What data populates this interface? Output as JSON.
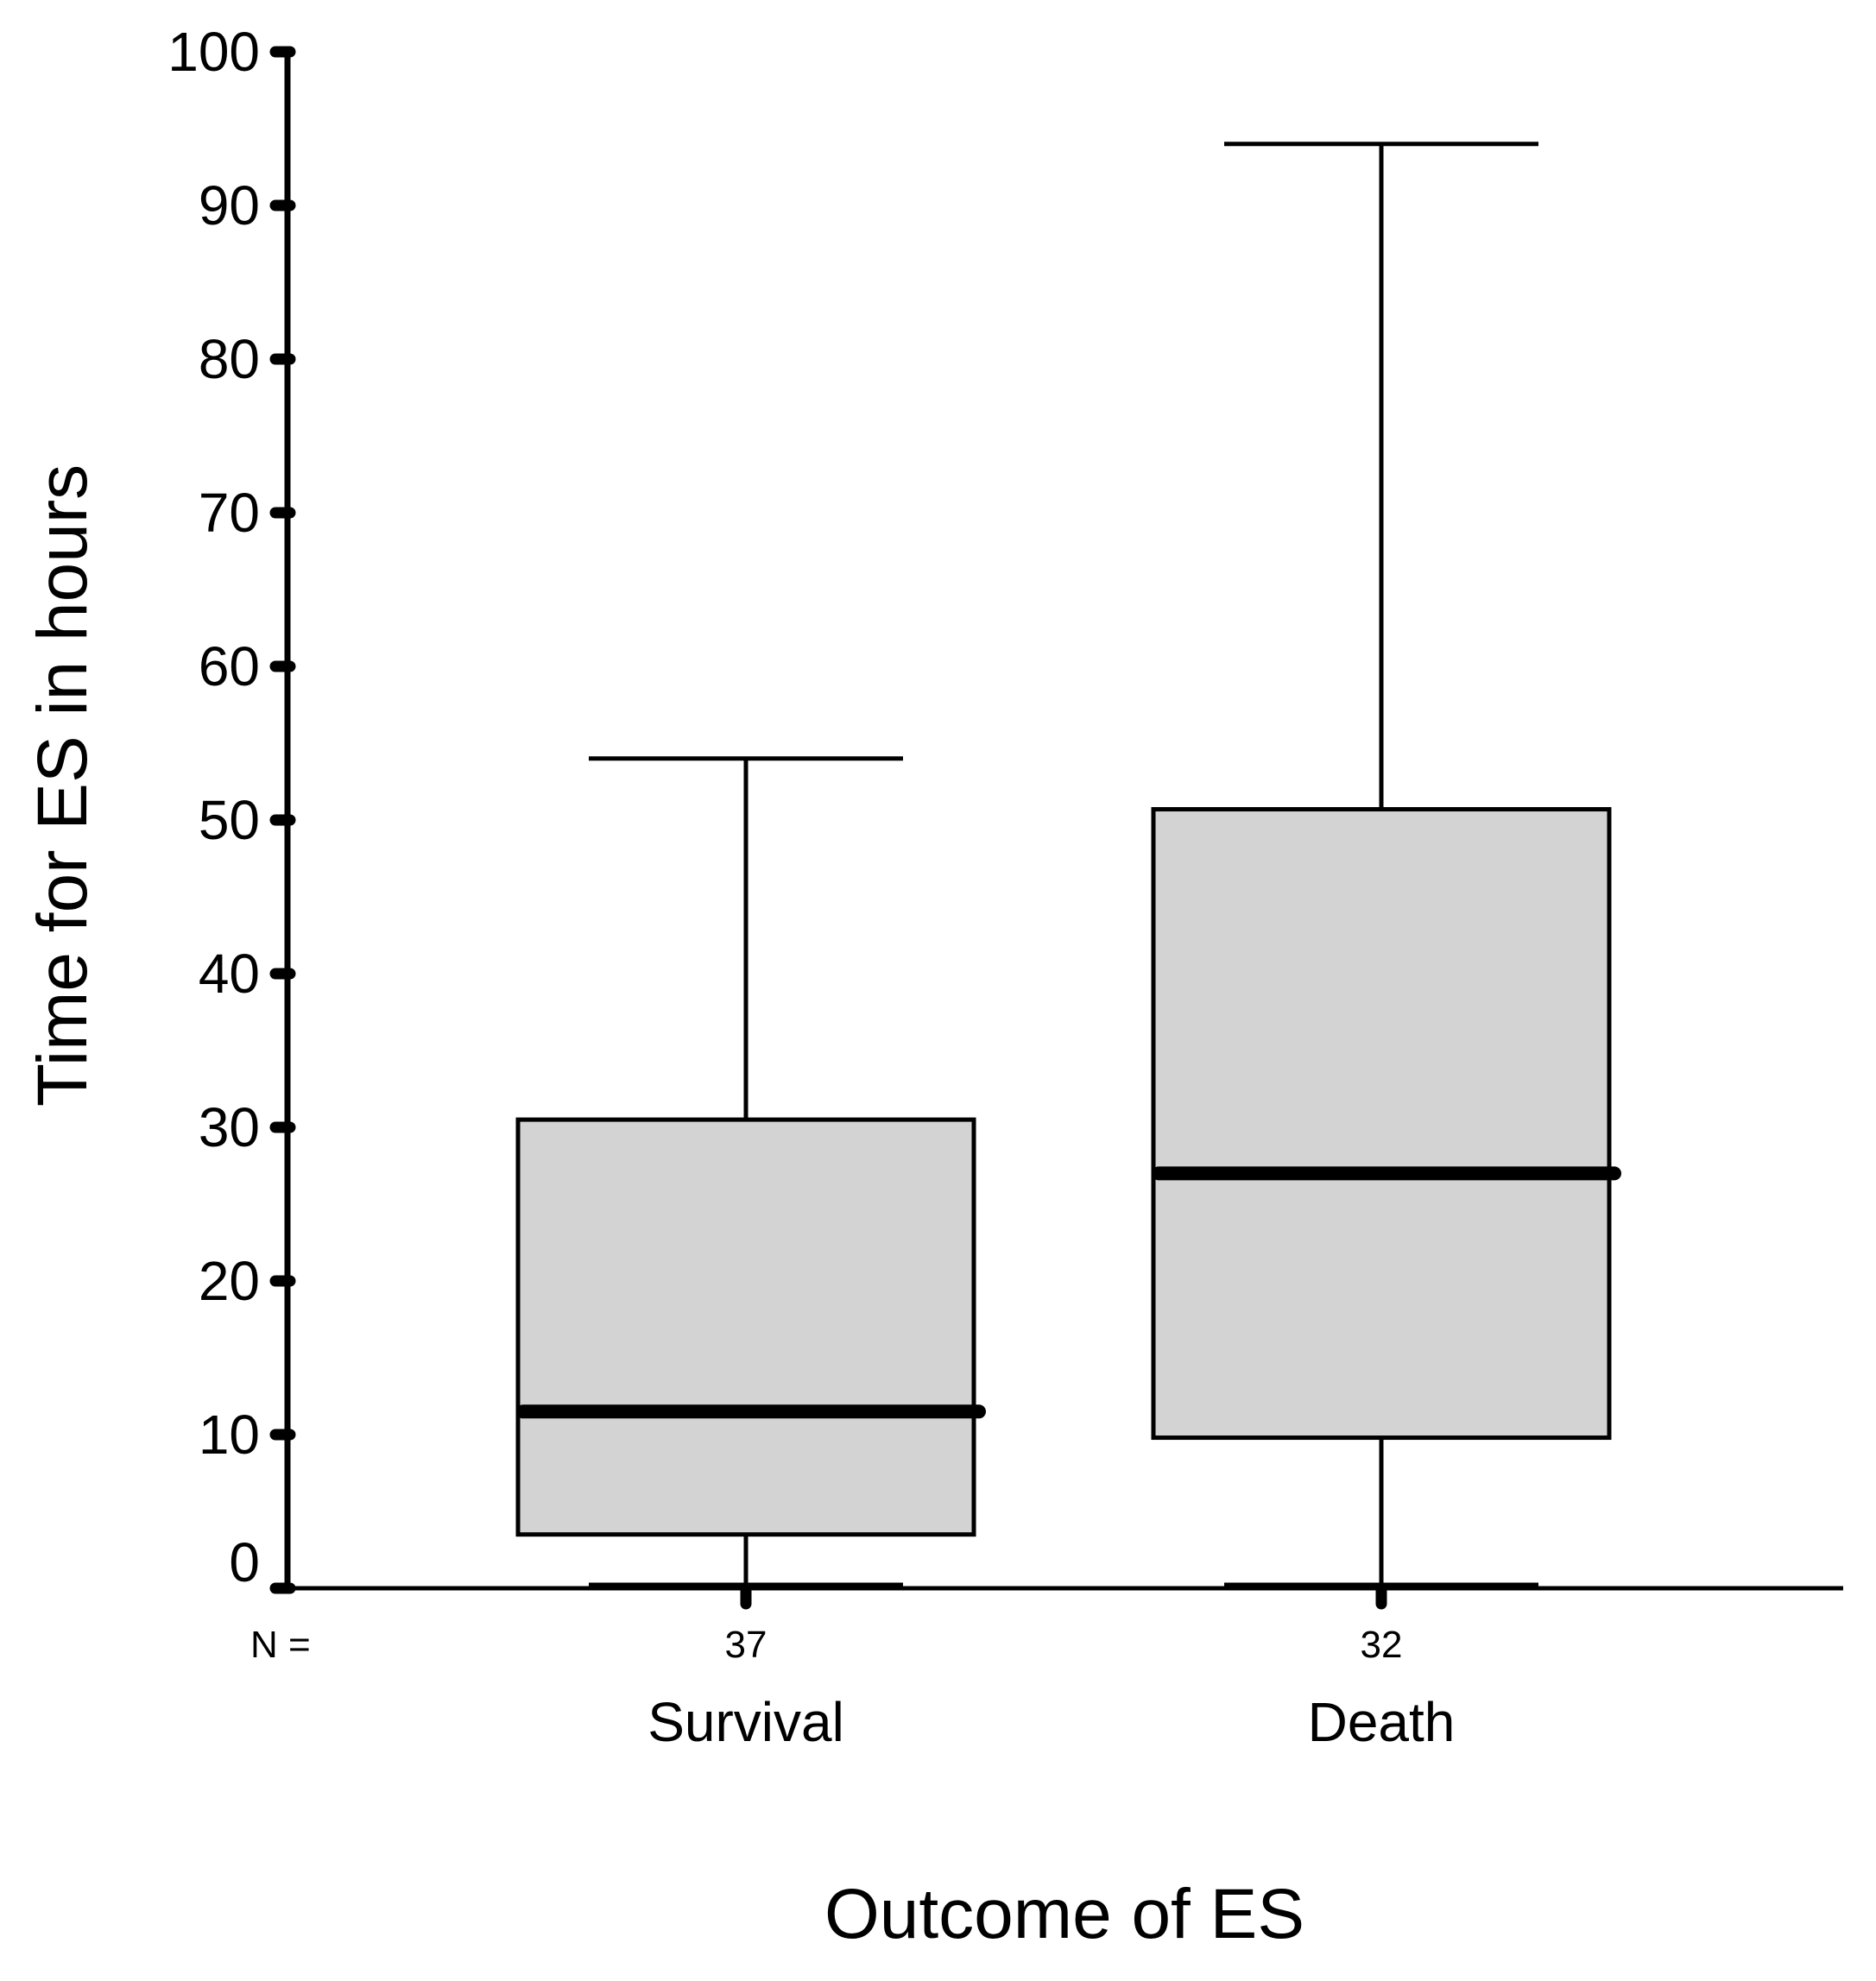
{
  "chart_data": {
    "type": "boxplot",
    "title": "",
    "xlabel": "Outcome of ES",
    "ylabel": "Time for ES in hours",
    "ylim": [
      0,
      100
    ],
    "yticks": [
      0,
      10,
      20,
      30,
      40,
      50,
      60,
      70,
      80,
      90,
      100
    ],
    "grid": false,
    "n_prefix": "N =",
    "categories": [
      "Survival",
      "Death"
    ],
    "series": [
      {
        "name": "Survival",
        "n": "37",
        "whisker_low": 0,
        "q1": 3.5,
        "median": 11.5,
        "q3": 30.5,
        "whisker_high": 54
      },
      {
        "name": "Death",
        "n": "32",
        "whisker_low": 0,
        "q1": 9.8,
        "median": 27,
        "q3": 50.7,
        "whisker_high": 94
      }
    ],
    "colors": {
      "box_fill": "#d3d3d3",
      "stroke": "#000000"
    }
  }
}
